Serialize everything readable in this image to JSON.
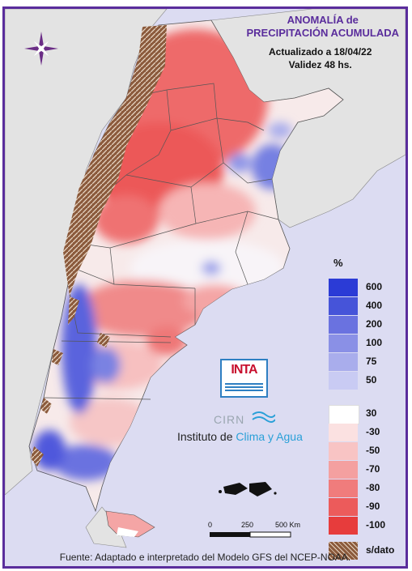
{
  "title": {
    "line1": "ANOMALÍA de",
    "line2": "PRECIPITACIÓN ACUMULADA"
  },
  "updated": "Actualizado a 18/04/22",
  "validity": "Validez 48 hs.",
  "legend": {
    "unit": "%",
    "items": [
      {
        "label": "600",
        "color": "#2b3bd6"
      },
      {
        "label": "400",
        "color": "#4654d9"
      },
      {
        "label": "200",
        "color": "#6a72e0"
      },
      {
        "label": "100",
        "color": "#8a90e6"
      },
      {
        "label": "75",
        "color": "#a9adec"
      },
      {
        "label": "50",
        "color": "#c9cbf3"
      },
      {
        "label": "30",
        "color": "#ffffff"
      },
      {
        "label": "-30",
        "color": "#fbe1e1"
      },
      {
        "label": "-50",
        "color": "#f8c4c4"
      },
      {
        "label": "-70",
        "color": "#f4a0a0"
      },
      {
        "label": "-80",
        "color": "#f07c7c"
      },
      {
        "label": "-90",
        "color": "#ec5b5b"
      },
      {
        "label": "-100",
        "color": "#e73c3c"
      },
      {
        "label": "s/dato",
        "color": "#8b5a3c"
      }
    ]
  },
  "scale": {
    "labels": [
      "0",
      "250",
      "500 Km"
    ]
  },
  "logos": {
    "inta": "INTA",
    "cirn": "CIRN",
    "institute_prefix": "Instituto de ",
    "institute_highlight": "Clima y Agua"
  },
  "footer": "Fuente: Adaptado e interpretado del Modelo GFS del NCEP-NOAA."
}
